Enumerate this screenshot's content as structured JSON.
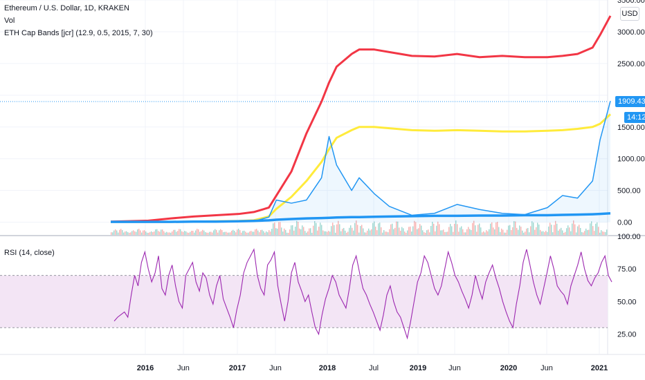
{
  "header": {
    "symbol_title": "Ethereum / U.S. Dollar, 1D, KRAKEN",
    "vol_label": "Vol",
    "indicator_label": "ETH Cap Bands [jcr] (12.9, 0.5, 2015, 7, 30)",
    "currency_button": "USD"
  },
  "rsi_pane": {
    "label": "RSI (14, close)"
  },
  "price_tags": {
    "last_price": "1909.43",
    "countdown": "14:12"
  },
  "colors": {
    "upper_band": "#f23645",
    "middle_band": "#ffeb3b",
    "lower_band": "#2196f3",
    "price": "#2196f3",
    "rsi": "#9c27b0",
    "rsi_band_fill": "#f3e5f5"
  },
  "chart_data": [
    {
      "type": "line",
      "title": "Ethereum / U.S. Dollar, 1D, KRAKEN",
      "xlabel": "",
      "ylabel": "",
      "x_ticks": [
        "2016",
        "Jun",
        "2017",
        "Jun",
        "2018",
        "Jul",
        "2019",
        "Jun",
        "2020",
        "Jun",
        "2021"
      ],
      "y_ticks": [
        "3500.00",
        "3000.00",
        "2500.00",
        "1500.00",
        "1000.00",
        "500.00",
        "0.00"
      ],
      "ylim": [
        -200,
        3500
      ],
      "x": [
        "2015-08",
        "2015-10",
        "2016-01",
        "2016-04",
        "2016-07",
        "2016-10",
        "2017-01",
        "2017-03",
        "2017-05",
        "2017-06",
        "2017-08",
        "2017-10",
        "2017-12",
        "2018-01",
        "2018-02",
        "2018-04",
        "2018-05",
        "2018-07",
        "2018-09",
        "2018-12",
        "2019-03",
        "2019-06",
        "2019-09",
        "2019-12",
        "2020-03",
        "2020-06",
        "2020-08",
        "2020-10",
        "2020-12",
        "2021-01",
        "2021-01"
      ],
      "series": [
        {
          "name": "",
          "role": "upper_band",
          "values": [
            10,
            15,
            25,
            60,
            90,
            110,
            130,
            160,
            230,
            420,
            800,
            1400,
            1900,
            2200,
            2450,
            2650,
            2720,
            2720,
            2680,
            2620,
            2610,
            2650,
            2600,
            2620,
            2600,
            2600,
            2620,
            2650,
            2750,
            2950,
            3250
          ]
        },
        {
          "name": "",
          "role": "middle_band",
          "values": [
            5,
            5,
            5,
            5,
            10,
            15,
            20,
            30,
            90,
            210,
            400,
            650,
            950,
            1150,
            1330,
            1450,
            1500,
            1500,
            1480,
            1450,
            1440,
            1450,
            1440,
            1430,
            1430,
            1440,
            1450,
            1470,
            1500,
            1550,
            1700
          ]
        },
        {
          "name": "",
          "role": "lower_band",
          "values": [
            5,
            5,
            5,
            5,
            10,
            10,
            15,
            20,
            30,
            40,
            50,
            60,
            65,
            70,
            75,
            80,
            80,
            85,
            90,
            95,
            100,
            100,
            105,
            105,
            110,
            110,
            115,
            120,
            125,
            130,
            140
          ]
        },
        {
          "name": "",
          "role": "price",
          "values": [
            1,
            1,
            1,
            8,
            12,
            12,
            10,
            15,
            80,
            350,
            300,
            350,
            700,
            1350,
            900,
            500,
            700,
            450,
            250,
            110,
            140,
            280,
            200,
            140,
            120,
            230,
            420,
            380,
            650,
            1300,
            1909
          ]
        }
      ]
    },
    {
      "type": "line",
      "title": "RSI (14, close)",
      "xlabel": "",
      "ylabel": "",
      "y_ticks": [
        "100.00",
        "75.00",
        "50.00",
        "25.00"
      ],
      "ylim": [
        10,
        100
      ],
      "band": [
        30,
        70
      ],
      "series": [
        {
          "name": "RSI (14, close)",
          "values": [
            35,
            38,
            40,
            42,
            38,
            55,
            70,
            62,
            80,
            88,
            75,
            65,
            72,
            85,
            60,
            55,
            70,
            78,
            62,
            50,
            45,
            70,
            75,
            80,
            65,
            58,
            72,
            68,
            55,
            48,
            62,
            70,
            52,
            45,
            38,
            30,
            44,
            55,
            72,
            80,
            85,
            90,
            70,
            60,
            55,
            78,
            82,
            88,
            62,
            48,
            35,
            50,
            72,
            80,
            65,
            58,
            50,
            55,
            42,
            30,
            25,
            40,
            52,
            60,
            70,
            65,
            55,
            50,
            45,
            60,
            78,
            85,
            72,
            60,
            55,
            48,
            42,
            35,
            28,
            40,
            55,
            62,
            50,
            42,
            38,
            30,
            22,
            35,
            50,
            65,
            72,
            85,
            80,
            70,
            60,
            55,
            62,
            75,
            88,
            80,
            70,
            65,
            58,
            52,
            45,
            55,
            70,
            60,
            52,
            65,
            72,
            78,
            68,
            60,
            50,
            42,
            35,
            30,
            48,
            62,
            80,
            90,
            78,
            65,
            55,
            48,
            60,
            72,
            85,
            75,
            62,
            58,
            55,
            48,
            62,
            70,
            78,
            88,
            75,
            66,
            62,
            68,
            72,
            80,
            85,
            70,
            65
          ]
        }
      ]
    }
  ]
}
